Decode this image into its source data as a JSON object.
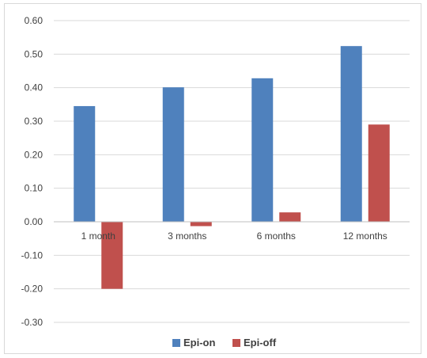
{
  "chart_data": {
    "type": "bar",
    "title": "",
    "xlabel": "",
    "ylabel": "",
    "categories": [
      "1 month",
      "3 months",
      "6 months",
      "12 months"
    ],
    "series": [
      {
        "name": "Epi-on",
        "values": [
          0.345,
          0.401,
          0.428,
          0.524
        ],
        "color": "#4f81bd"
      },
      {
        "name": "Epi-off",
        "values": [
          -0.2,
          -0.013,
          0.028,
          0.29
        ],
        "color": "#c0504d"
      }
    ],
    "ylim": [
      -0.3,
      0.6
    ],
    "yticks": [
      0.6,
      0.5,
      0.4,
      0.3,
      0.2,
      0.1,
      0.0,
      -0.1,
      -0.2,
      -0.3
    ],
    "ytick_labels": [
      "0.60",
      "0.50",
      "0.40",
      "0.30",
      "0.20",
      "0.10",
      "0.00",
      "-0.10",
      "-0.20",
      "-0.30"
    ],
    "grid": true,
    "legend": "bottom"
  }
}
